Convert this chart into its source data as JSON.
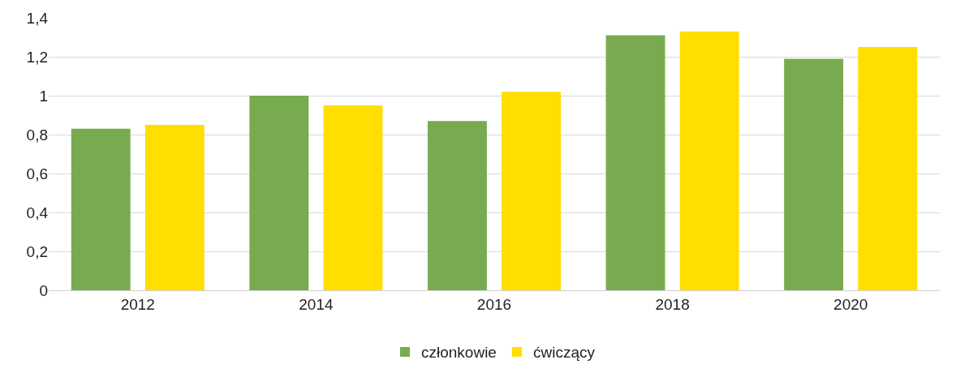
{
  "chart_data": {
    "type": "bar",
    "categories": [
      "2012",
      "2014",
      "2016",
      "2018",
      "2020"
    ],
    "series": [
      {
        "name": "członkowie",
        "color": "#78ab4f",
        "values": [
          0.83,
          1.0,
          0.87,
          1.31,
          1.19
        ]
      },
      {
        "name": "ćwiczący",
        "color": "#ffde00",
        "values": [
          0.85,
          0.95,
          1.02,
          1.33,
          1.25
        ]
      }
    ],
    "ylim": [
      0,
      1.4
    ],
    "yticks": [
      0,
      {
        "value": 0.2,
        "label": "0,2"
      },
      {
        "value": 0.4,
        "label": "0,4"
      },
      {
        "value": 0.6,
        "label": "0,6"
      },
      {
        "value": 0.8,
        "label": "0,8"
      },
      1,
      {
        "value": 1.2,
        "label": "1,2"
      },
      {
        "value": 1.4,
        "label": "1,4"
      }
    ],
    "grid": "y",
    "legend": "bottom"
  }
}
